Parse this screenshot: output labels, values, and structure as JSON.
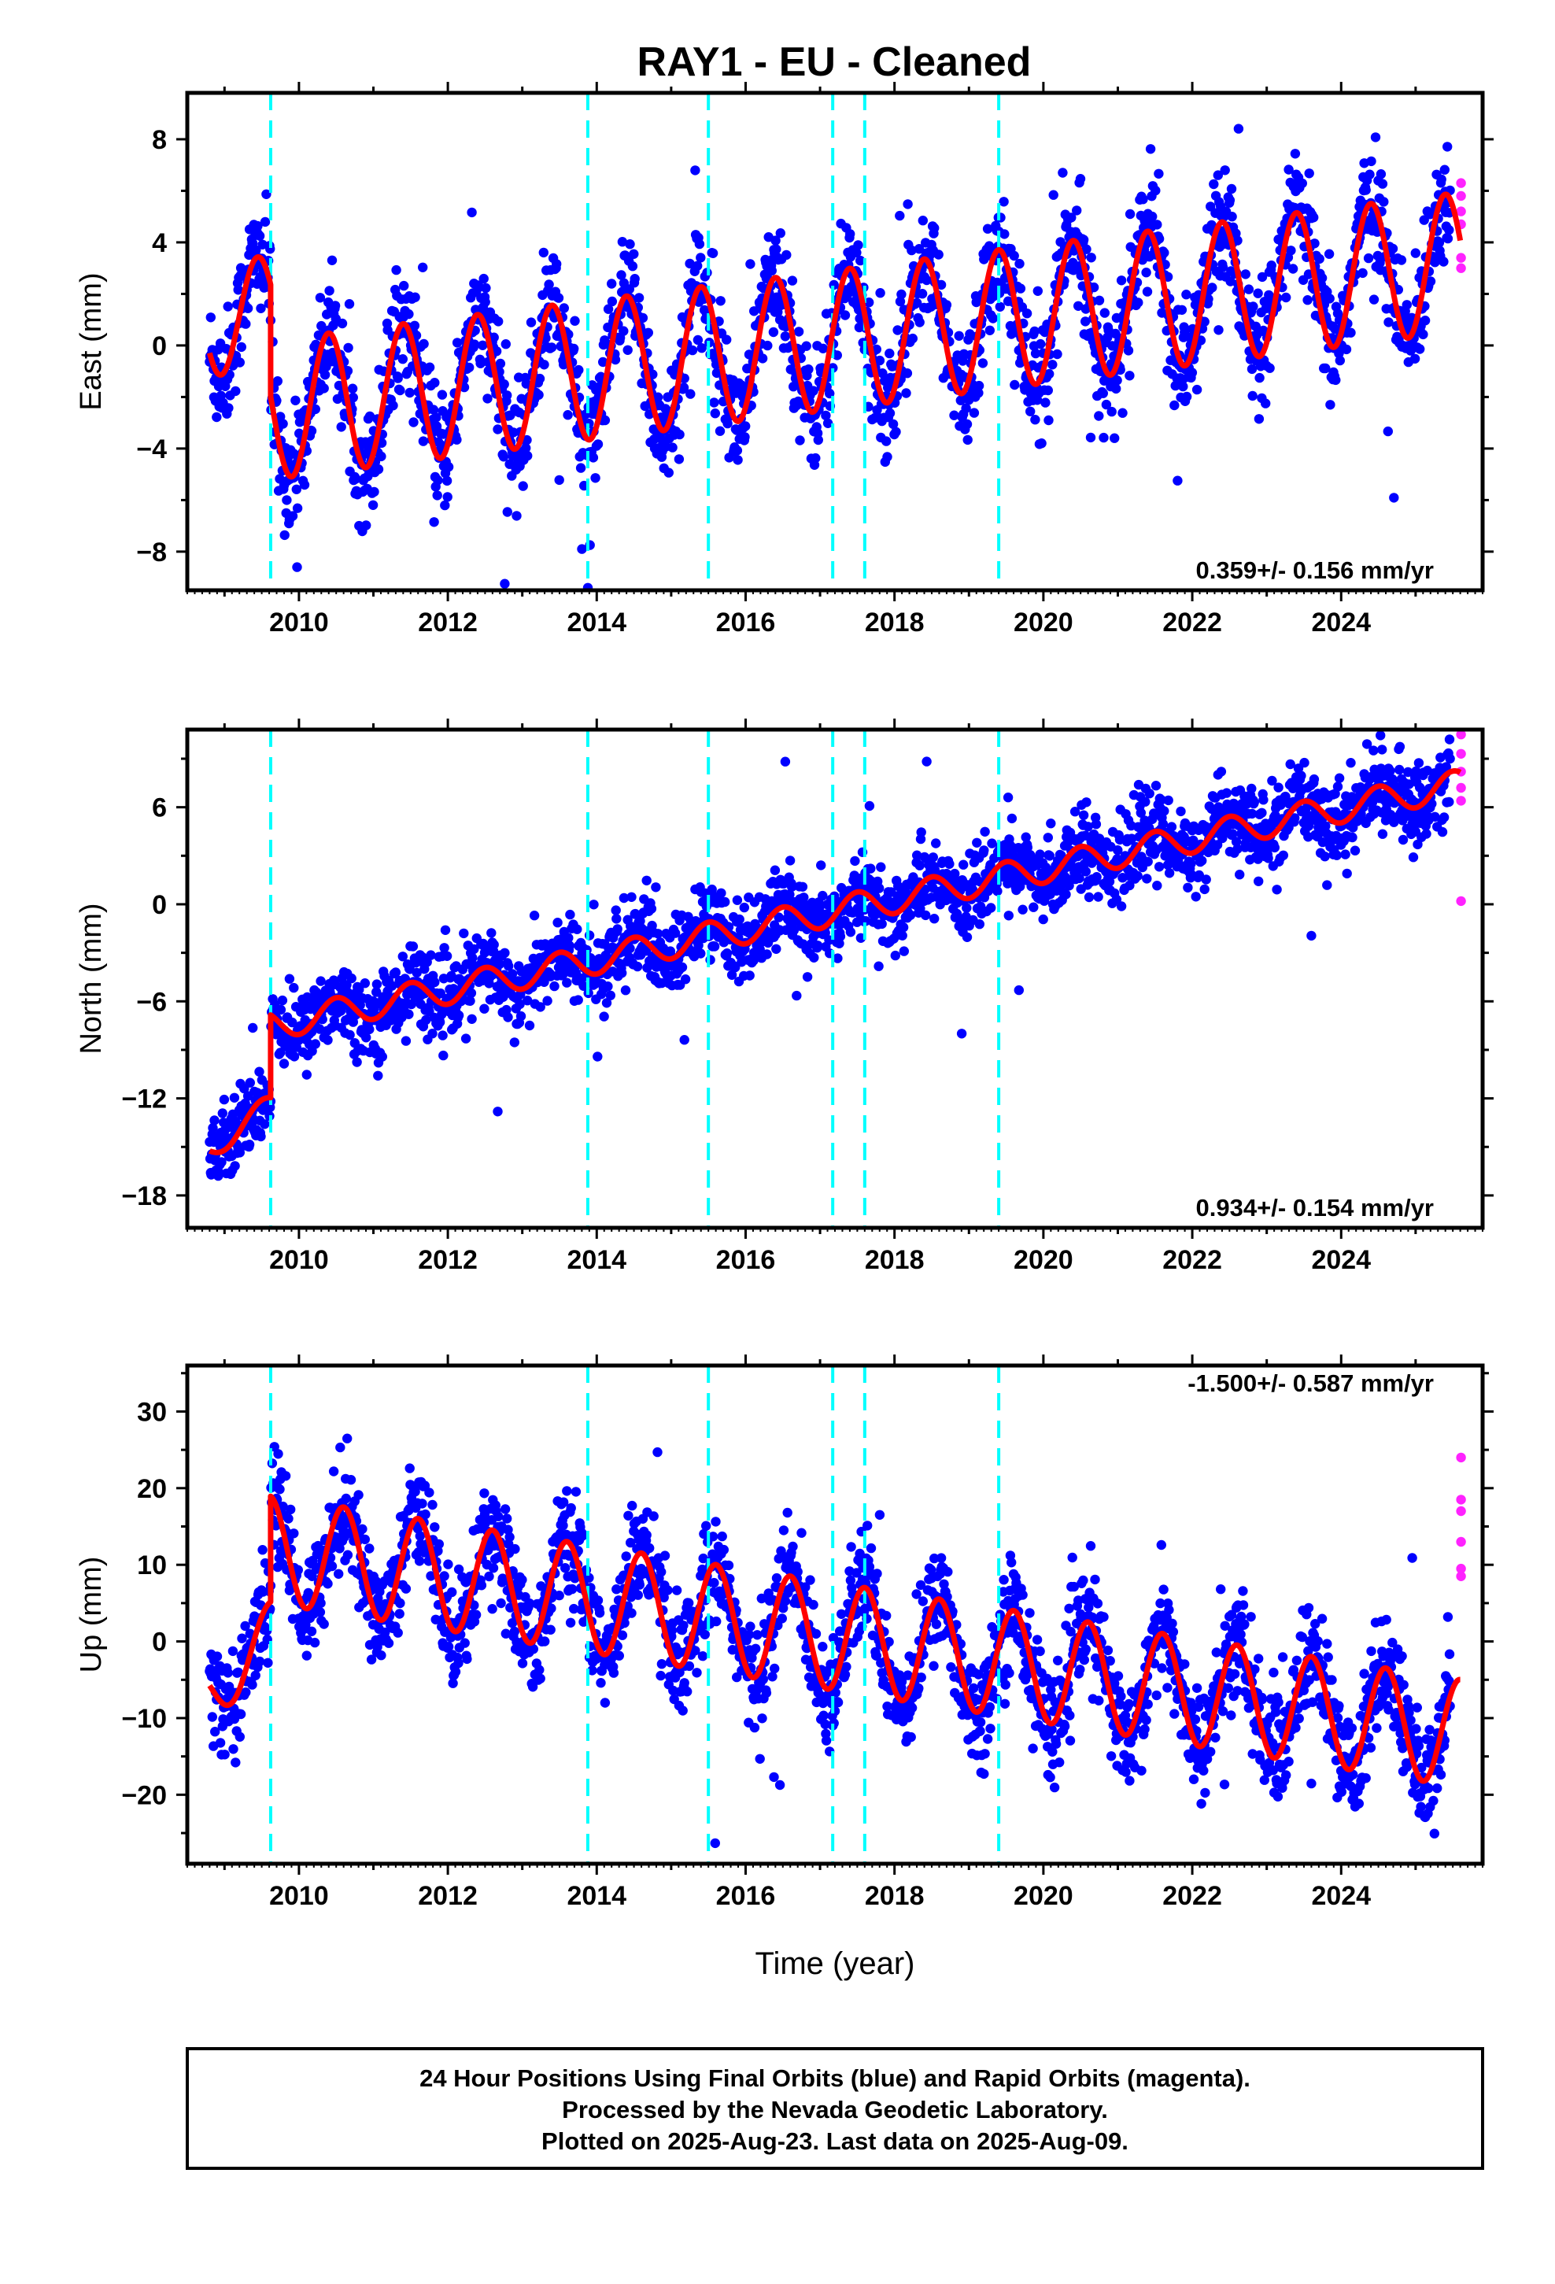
{
  "title": "RAY1  - EU - Cleaned",
  "colors": {
    "final_orbits": "#0000ff",
    "rapid_orbits": "#ff22ff",
    "model": "#ff0000",
    "steps": "#00ffff"
  },
  "chart_data": [
    {
      "type": "scatter",
      "panel": "east",
      "ylabel": "East (mm)",
      "xlim": [
        2008.5,
        2025.9
      ],
      "ylim": [
        -9.5,
        9.8
      ],
      "xticks": [
        2010,
        2012,
        2014,
        2016,
        2018,
        2020,
        2022,
        2024
      ],
      "yticks": [
        -8,
        -4,
        0,
        4,
        8
      ],
      "rate_label": "0.359+/- 0.156 mm/yr",
      "steps": [
        2009.62,
        2013.88,
        2015.5,
        2017.17,
        2017.6,
        2019.4
      ],
      "data_start": 2008.8,
      "data_end": 2025.6,
      "rapid_start": 2025.47,
      "model": {
        "segments": [
          {
            "start": 2008.8,
            "end": 2009.62,
            "offset": 1.0,
            "trend": 0.359,
            "amplitude": 2.2,
            "peak": 0.45,
            "noise": 1.1
          },
          {
            "start": 2009.62,
            "end": 2025.6,
            "offset": -2.5,
            "trend": 0.359,
            "amplitude": 2.7,
            "peak": 0.4,
            "noise": 1.1
          }
        ]
      },
      "rapid_values": [
        6.3,
        5.8,
        5.2,
        4.7,
        3.4,
        3.0
      ]
    },
    {
      "type": "scatter",
      "panel": "north",
      "ylabel": "North (mm)",
      "xlim": [
        2008.5,
        2025.9
      ],
      "ylim": [
        -20.0,
        10.8
      ],
      "xticks": [
        2010,
        2012,
        2014,
        2016,
        2018,
        2020,
        2022,
        2024
      ],
      "yticks": [
        -18,
        -12,
        -6,
        0,
        6
      ],
      "rate_label": "0.934+/- 0.154 mm/yr",
      "steps": [
        2009.62,
        2013.88,
        2015.5,
        2017.17,
        2017.6,
        2019.4
      ],
      "data_start": 2008.8,
      "data_end": 2025.6,
      "rapid_start": 2025.47,
      "model": {
        "segments": [
          {
            "start": 2008.8,
            "end": 2009.62,
            "offset": -15.0,
            "trend": 3.0,
            "amplitude": 0.8,
            "peak": 0.5,
            "noise": 1.2
          },
          {
            "start": 2009.62,
            "end": 2025.6,
            "offset": -7.5,
            "trend": 0.934,
            "amplitude": 0.9,
            "peak": 0.5,
            "noise": 1.2
          }
        ]
      },
      "rapid_values": [
        10.5,
        9.3,
        8.2,
        7.2,
        6.4,
        0.2
      ]
    },
    {
      "type": "scatter",
      "panel": "up",
      "ylabel": "Up (mm)",
      "xlabel": "Time (year)",
      "xlim": [
        2008.5,
        2025.9
      ],
      "ylim": [
        -29.0,
        36.0
      ],
      "xticks": [
        2010,
        2012,
        2014,
        2016,
        2018,
        2020,
        2022,
        2024
      ],
      "yticks": [
        -20,
        -10,
        0,
        10,
        20,
        30
      ],
      "rate_label": "-1.500+/- 0.587 mm/yr",
      "steps": [
        2009.62,
        2013.88,
        2015.5,
        2017.17,
        2017.6,
        2019.4
      ],
      "data_start": 2008.8,
      "data_end": 2025.6,
      "rapid_start": 2025.47,
      "model": {
        "segments": [
          {
            "start": 2008.8,
            "end": 2009.62,
            "offset": -7.0,
            "trend": 10.0,
            "amplitude": 4.0,
            "peak": 0.6,
            "noise": 3.5
          },
          {
            "start": 2009.62,
            "end": 2025.6,
            "offset": 12.0,
            "trend": -1.5,
            "amplitude": 7.0,
            "peak": 0.6,
            "noise": 3.5
          }
        ]
      },
      "rapid_values": [
        24.0,
        18.5,
        17.0,
        13.0,
        9.5,
        8.5
      ]
    }
  ],
  "footer": {
    "line1": "24 Hour Positions Using Final Orbits (blue) and Rapid Orbits (magenta).",
    "line2": "Processed by the Nevada Geodetic Laboratory.",
    "line3": "Plotted on 2025-Aug-23. Last data on 2025-Aug-09."
  }
}
